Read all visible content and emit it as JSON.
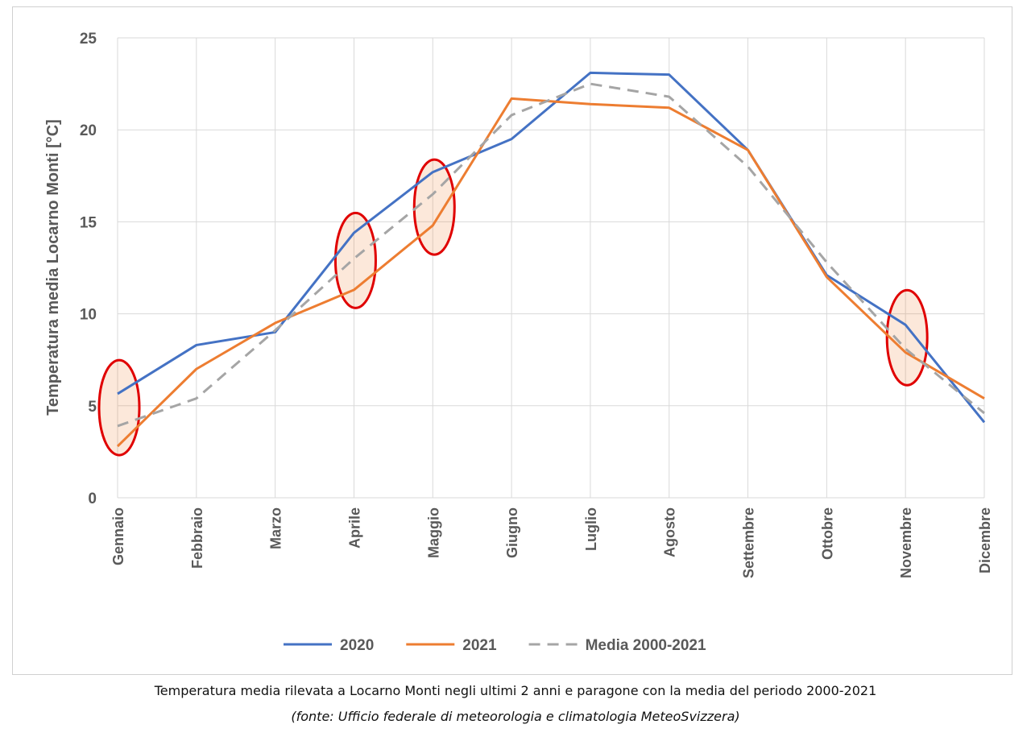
{
  "chart_data": {
    "type": "line",
    "title": "",
    "xlabel": "",
    "ylabel": "Temperatura media Locarno Monti [°C]",
    "ylim": [
      0,
      25
    ],
    "yticks": [
      0,
      5,
      10,
      15,
      20,
      25
    ],
    "grid": true,
    "legend_position": "bottom",
    "categories": [
      "Gennaio",
      "Febbraio",
      "Marzo",
      "Aprile",
      "Maggio",
      "Giugno",
      "Luglio",
      "Agosto",
      "Settembre",
      "Ottobre",
      "Novembre",
      "Dicembre"
    ],
    "series": [
      {
        "name": "2020",
        "color": "#4472c4",
        "dash": false,
        "values": [
          5.65,
          8.3,
          9.0,
          14.4,
          17.7,
          19.5,
          23.1,
          23.0,
          18.9,
          12.1,
          9.4,
          4.1
        ]
      },
      {
        "name": "2021",
        "color": "#ed7d31",
        "dash": false,
        "values": [
          2.8,
          7.0,
          9.5,
          11.3,
          14.8,
          21.7,
          21.4,
          21.2,
          18.9,
          12.0,
          7.9,
          5.4
        ]
      },
      {
        "name": "Media 2000-2021",
        "color": "#a5a5a5",
        "dash": true,
        "values": [
          3.9,
          5.4,
          9.1,
          13.0,
          16.5,
          20.8,
          22.5,
          21.8,
          18.0,
          12.8,
          8.1,
          4.6
        ]
      }
    ],
    "highlighted_months": [
      {
        "month_index": 0,
        "center": 4.9
      },
      {
        "month_index": 3,
        "center": 12.9
      },
      {
        "month_index": 4,
        "center": 15.8
      },
      {
        "month_index": 10,
        "center": 8.7
      }
    ],
    "highlight_color": "#e00000"
  },
  "caption": {
    "line1": "Temperatura media rilevata a Locarno Monti negli ultimi 2 anni e paragone con la media del periodo 2000-2021",
    "line2": "(fonte: Ufficio federale di meteorologia e climatologia MeteoSvizzera)"
  }
}
